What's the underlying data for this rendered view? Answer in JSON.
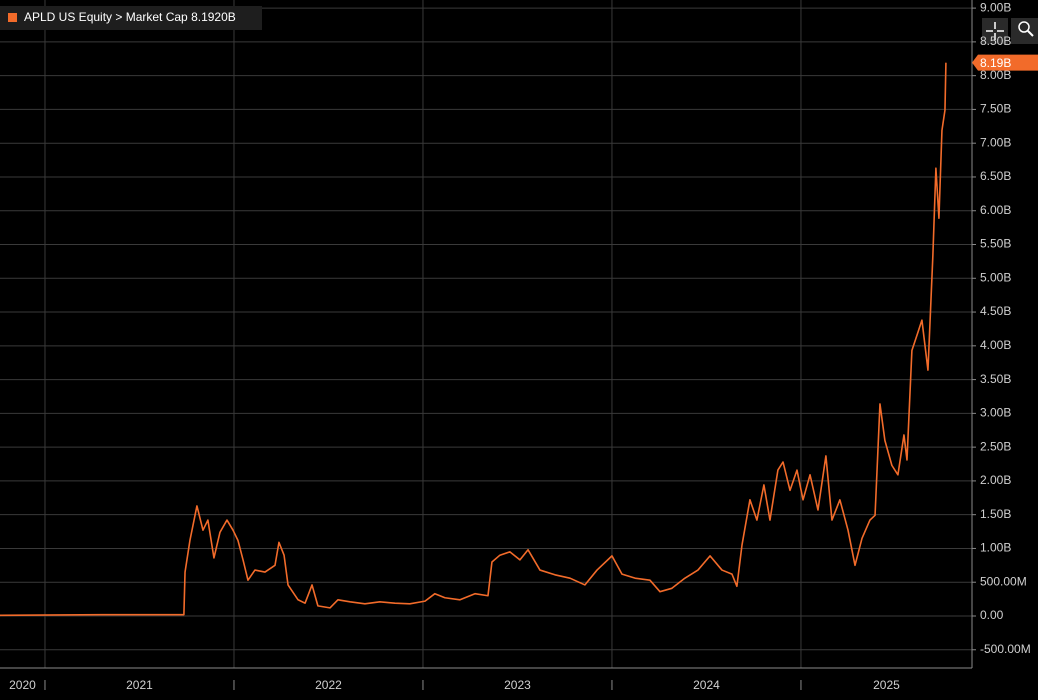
{
  "chart_data": {
    "type": "line",
    "legend_value": "8.1920B",
    "last_value_tag": "8.19B",
    "x": [
      2020.762,
      2021.3,
      2021.735,
      2021.741,
      2021.767,
      2021.804,
      2021.836,
      2021.862,
      2021.894,
      2021.926,
      2021.963,
      2021.995,
      2022.021,
      2022.048,
      2022.074,
      2022.111,
      2022.164,
      2022.217,
      2022.238,
      2022.265,
      2022.286,
      2022.339,
      2022.376,
      2022.413,
      2022.444,
      2022.508,
      2022.55,
      2022.614,
      2022.693,
      2022.772,
      2022.852,
      2022.931,
      2023.011,
      2023.063,
      2023.116,
      2023.196,
      2023.275,
      2023.344,
      2023.365,
      2023.407,
      2023.46,
      2023.513,
      2023.556,
      2023.619,
      2023.698,
      2023.778,
      2023.857,
      2023.921,
      2024.0,
      2024.053,
      2024.122,
      2024.201,
      2024.254,
      2024.317,
      2024.386,
      2024.455,
      2024.519,
      2024.582,
      2024.635,
      2024.661,
      2024.688,
      2024.73,
      2024.767,
      2024.804,
      2024.836,
      2024.878,
      2024.905,
      2024.942,
      2024.979,
      2025.011,
      2025.048,
      2025.09,
      2025.132,
      2025.164,
      2025.206,
      2025.249,
      2025.286,
      2025.323,
      2025.365,
      2025.392,
      2025.418,
      2025.444,
      2025.481,
      2025.513,
      2025.545,
      2025.561,
      2025.587,
      2025.619,
      2025.64,
      2025.672,
      2025.698,
      2025.714,
      2025.73,
      2025.746,
      2025.762,
      2025.767
    ],
    "series": [
      {
        "name": "APLD US Equity > Market Cap",
        "color": "#f26b2a",
        "values": [
          0.01,
          0.02,
          0.02,
          0.65,
          1.12,
          1.63,
          1.27,
          1.42,
          0.86,
          1.24,
          1.42,
          1.27,
          1.12,
          0.83,
          0.53,
          0.68,
          0.65,
          0.75,
          1.09,
          0.9,
          0.46,
          0.24,
          0.19,
          0.46,
          0.15,
          0.12,
          0.24,
          0.21,
          0.18,
          0.21,
          0.19,
          0.18,
          0.22,
          0.33,
          0.27,
          0.24,
          0.33,
          0.3,
          0.8,
          0.9,
          0.95,
          0.83,
          0.98,
          0.68,
          0.61,
          0.56,
          0.46,
          0.68,
          0.89,
          0.62,
          0.56,
          0.53,
          0.36,
          0.41,
          0.56,
          0.68,
          0.89,
          0.68,
          0.62,
          0.44,
          1.05,
          1.72,
          1.42,
          1.94,
          1.42,
          2.16,
          2.28,
          1.86,
          2.16,
          1.72,
          2.09,
          1.57,
          2.37,
          1.42,
          1.72,
          1.27,
          0.75,
          1.15,
          1.42,
          1.49,
          3.14,
          2.6,
          2.23,
          2.09,
          2.68,
          2.31,
          3.93,
          4.2,
          4.38,
          3.64,
          5.34,
          6.63,
          5.89,
          7.19,
          7.49,
          8.192
        ]
      }
    ],
    "xlim": [
      2020.762,
      2025.905
    ],
    "xticks": [
      2021,
      2022,
      2023,
      2024,
      2025
    ],
    "year_labels": [
      2020,
      2021,
      2022,
      2023,
      2024,
      2025
    ],
    "ylim": [
      -0.77,
      9.12
    ],
    "yticks": [
      {
        "value": -0.5,
        "label": "-500.00M"
      },
      {
        "value": 0,
        "label": "0.00"
      },
      {
        "value": 0.5,
        "label": "500.00M"
      },
      {
        "value": 1,
        "label": "1.00B"
      },
      {
        "value": 1.5,
        "label": "1.50B"
      },
      {
        "value": 2,
        "label": "2.00B"
      },
      {
        "value": 2.5,
        "label": "2.50B"
      },
      {
        "value": 3,
        "label": "3.00B"
      },
      {
        "value": 3.5,
        "label": "3.50B"
      },
      {
        "value": 4,
        "label": "4.00B"
      },
      {
        "value": 4.5,
        "label": "4.50B"
      },
      {
        "value": 5,
        "label": "5.00B"
      },
      {
        "value": 5.5,
        "label": "5.50B"
      },
      {
        "value": 6,
        "label": "6.00B"
      },
      {
        "value": 6.5,
        "label": "6.50B"
      },
      {
        "value": 7,
        "label": "7.00B"
      },
      {
        "value": 7.5,
        "label": "7.50B"
      },
      {
        "value": 8,
        "label": "8.00B"
      },
      {
        "value": 8.5,
        "label": "8.50B"
      },
      {
        "value": 9,
        "label": "9.00B"
      }
    ],
    "grid": true
  }
}
